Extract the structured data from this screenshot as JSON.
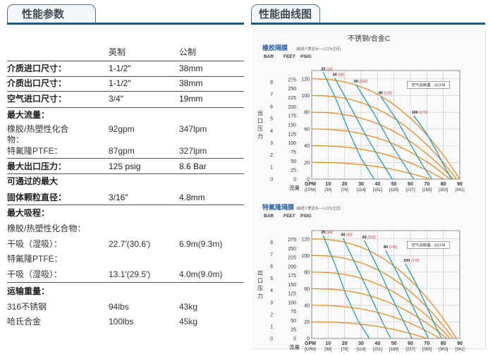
{
  "left_tab": {
    "title": "性能参数"
  },
  "right_tab": {
    "title": "性能曲线图"
  },
  "table": {
    "header": {
      "col_imperial": "英制",
      "col_metric": "公制"
    },
    "rows": [
      {
        "label": "介质进口尺寸：",
        "imp": "1-1/2\"",
        "met": "38mm",
        "bold": true
      },
      {
        "label": "介质出口尺寸：",
        "imp": "1-1/2\"",
        "met": "38mm",
        "bold": true
      },
      {
        "label": "空气进口尺寸：",
        "imp": "3/4\"",
        "met": "19mm",
        "bold": true
      },
      {
        "label": "最大流量：",
        "imp": "",
        "met": "",
        "bold": true
      },
      {
        "label": "橡胶/热塑性化合",
        "imp": "92gpm",
        "met": "347lpm",
        "bold": false
      },
      {
        "label": "物：",
        "imp": "",
        "met": "",
        "bold": false
      },
      {
        "label": "特氟隆PTFE：",
        "imp": "87gpm",
        "met": "327lpm",
        "bold": false
      },
      {
        "label": "最大出口压力：",
        "imp": "125 psig",
        "met": "8.6 Bar",
        "bold": true
      },
      {
        "label": "可通过的最大",
        "imp": "",
        "met": "",
        "bold": true
      },
      {
        "label": "固体颗粒直径：",
        "imp": "3/16\"",
        "met": "4.8mm",
        "bold": true
      },
      {
        "label": "最大吸程：",
        "imp": "",
        "met": "",
        "bold": true
      },
      {
        "label": "橡胶/热塑性化合物：",
        "imp": "",
        "met": "",
        "bold": false
      },
      {
        "label": "干吸（湿吸）：",
        "imp": "22.7'(30.6')",
        "met": "6.9m(9.3m)",
        "bold": false
      },
      {
        "label": "特氟隆PTFE：",
        "imp": "",
        "met": "",
        "bold": false
      },
      {
        "label": "干吸（湿吸）：",
        "imp": "13.1'(29.5')",
        "met": "4.0m(9.0m)",
        "bold": false
      },
      {
        "label": "运输重量：",
        "imp": "",
        "met": "",
        "bold": true
      },
      {
        "label": "316不锈钢",
        "imp": "94lbs",
        "met": "43kg",
        "bold": false
      },
      {
        "label": "哈氏合金",
        "imp": "100lbs",
        "met": "45kg",
        "bold": false
      }
    ]
  },
  "chart_data": [
    {
      "type": "line",
      "title": "不锈钢/合金C",
      "subtitle": "橡胶隔膜",
      "subtitle_note": "(输送介质显水—入口为正压)",
      "legend_box": "空气消耗量 - SCFM",
      "y_units": [
        "BAR",
        "FEET",
        "PSIG"
      ],
      "ylabel": "出口压力",
      "xlabel": "流量",
      "x_units": [
        "GPM",
        "[LPM]"
      ],
      "x_ticks": [
        0,
        10,
        20,
        30,
        40,
        50,
        60,
        70,
        80,
        90
      ],
      "x_ticks_lpm": [
        "[LPM]",
        "[38]",
        "[76]",
        "[114]",
        "[151]",
        "[189]",
        "[227]",
        "[265]",
        "[303]",
        "[341]"
      ],
      "y_ticks_psig": [
        0,
        20,
        40,
        60,
        80,
        100,
        120
      ],
      "y_ticks_bar": [
        0,
        1,
        2,
        3,
        4,
        5,
        6,
        7,
        8
      ],
      "y_ticks_feet": [
        0,
        25,
        50,
        75,
        100,
        125,
        150,
        175,
        200,
        225,
        250,
        275
      ],
      "xlim": [
        0,
        90
      ],
      "ylim": [
        0,
        130
      ],
      "pressure_curves": [
        {
          "p0": 120,
          "xmax": 90
        },
        {
          "p0": 100,
          "xmax": 88
        },
        {
          "p0": 80,
          "xmax": 86
        },
        {
          "p0": 60,
          "xmax": 84
        },
        {
          "p0": 40,
          "xmax": 80
        },
        {
          "p0": 20,
          "xmax": 72
        }
      ],
      "air_curves": [
        {
          "label": "20",
          "label_lpm": "[34]",
          "points": [
            [
              7,
              128
            ],
            [
              15,
              95
            ],
            [
              23,
              55
            ],
            [
              30,
              25
            ],
            [
              38,
              0
            ]
          ]
        },
        {
          "label": "40",
          "label_lpm": "[68]",
          "points": [
            [
              14,
              121
            ],
            [
              24,
              85
            ],
            [
              33,
              52
            ],
            [
              42,
              22
            ],
            [
              49,
              0
            ]
          ]
        },
        {
          "label": "60",
          "label_lpm": "[102]",
          "points": [
            [
              27,
              113
            ],
            [
              38,
              78
            ],
            [
              47,
              46
            ],
            [
              56,
              18
            ],
            [
              62,
              0
            ]
          ]
        },
        {
          "label": "80",
          "label_lpm": "[136]",
          "points": [
            [
              42,
              99
            ],
            [
              52,
              70
            ],
            [
              60,
              42
            ],
            [
              67,
              18
            ],
            [
              73,
              0
            ]
          ]
        },
        {
          "label": "100",
          "label_lpm": "[170]",
          "points": [
            [
              62,
              76
            ],
            [
              70,
              54
            ],
            [
              76,
              33
            ],
            [
              81,
              14
            ],
            [
              85,
              0
            ]
          ]
        }
      ]
    },
    {
      "type": "line",
      "subtitle": "特氟隆隔膜",
      "subtitle_note": "(输送介质显水—入口为正压)",
      "legend_box": "空气消耗量 - SCFM",
      "y_units": [
        "BAR",
        "FEET",
        "PSIG"
      ],
      "ylabel": "出口压力",
      "xlabel": "流量",
      "x_units": [
        "GPM",
        "[LPM]"
      ],
      "x_ticks": [
        0,
        10,
        20,
        30,
        40,
        50,
        60,
        70,
        80,
        90
      ],
      "x_ticks_lpm": [
        "[LPM]",
        "[38]",
        "[76]",
        "[114]",
        "[151]",
        "[189]",
        "[227]",
        "[265]",
        "[303]",
        "[341]"
      ],
      "y_ticks_psig": [
        0,
        20,
        40,
        60,
        80,
        100,
        120
      ],
      "y_ticks_bar": [
        0,
        1,
        2,
        3,
        4,
        5,
        6,
        7,
        8
      ],
      "y_ticks_feet": [
        0,
        25,
        50,
        75,
        100,
        125,
        150,
        175,
        200,
        225,
        250,
        275
      ],
      "xlim": [
        0,
        90
      ],
      "ylim": [
        0,
        130
      ],
      "pressure_curves": [
        {
          "p0": 120,
          "xmax": 88
        },
        {
          "p0": 100,
          "xmax": 86
        },
        {
          "p0": 80,
          "xmax": 84
        },
        {
          "p0": 60,
          "xmax": 82
        },
        {
          "p0": 40,
          "xmax": 78
        },
        {
          "p0": 20,
          "xmax": 70
        }
      ],
      "air_curves": [
        {
          "label": "20",
          "label_lpm": "[34]",
          "points": [
            [
              7,
              124
            ],
            [
              14,
              90
            ],
            [
              21,
              52
            ],
            [
              28,
              22
            ],
            [
              35,
              0
            ]
          ]
        },
        {
          "label": "40",
          "label_lpm": "[68]",
          "points": [
            [
              19,
              121
            ],
            [
              28,
              84
            ],
            [
              36,
              50
            ],
            [
              43,
              20
            ],
            [
              48,
              0
            ]
          ]
        },
        {
          "label": "60",
          "label_lpm": "[102]",
          "points": [
            [
              32,
              118
            ],
            [
              41,
              82
            ],
            [
              49,
              48
            ],
            [
              56,
              20
            ],
            [
              61,
              0
            ]
          ]
        },
        {
          "label": "80",
          "label_lpm": "[136]",
          "points": [
            [
              45,
              106
            ],
            [
              53,
              75
            ],
            [
              60,
              45
            ],
            [
              66,
              20
            ],
            [
              71,
              0
            ]
          ]
        },
        {
          "label": "100",
          "label_lpm": "[170]",
          "points": [
            [
              57,
              90
            ],
            [
              64,
              64
            ],
            [
              70,
              38
            ],
            [
              75,
              16
            ],
            [
              79,
              0
            ]
          ]
        }
      ]
    }
  ]
}
